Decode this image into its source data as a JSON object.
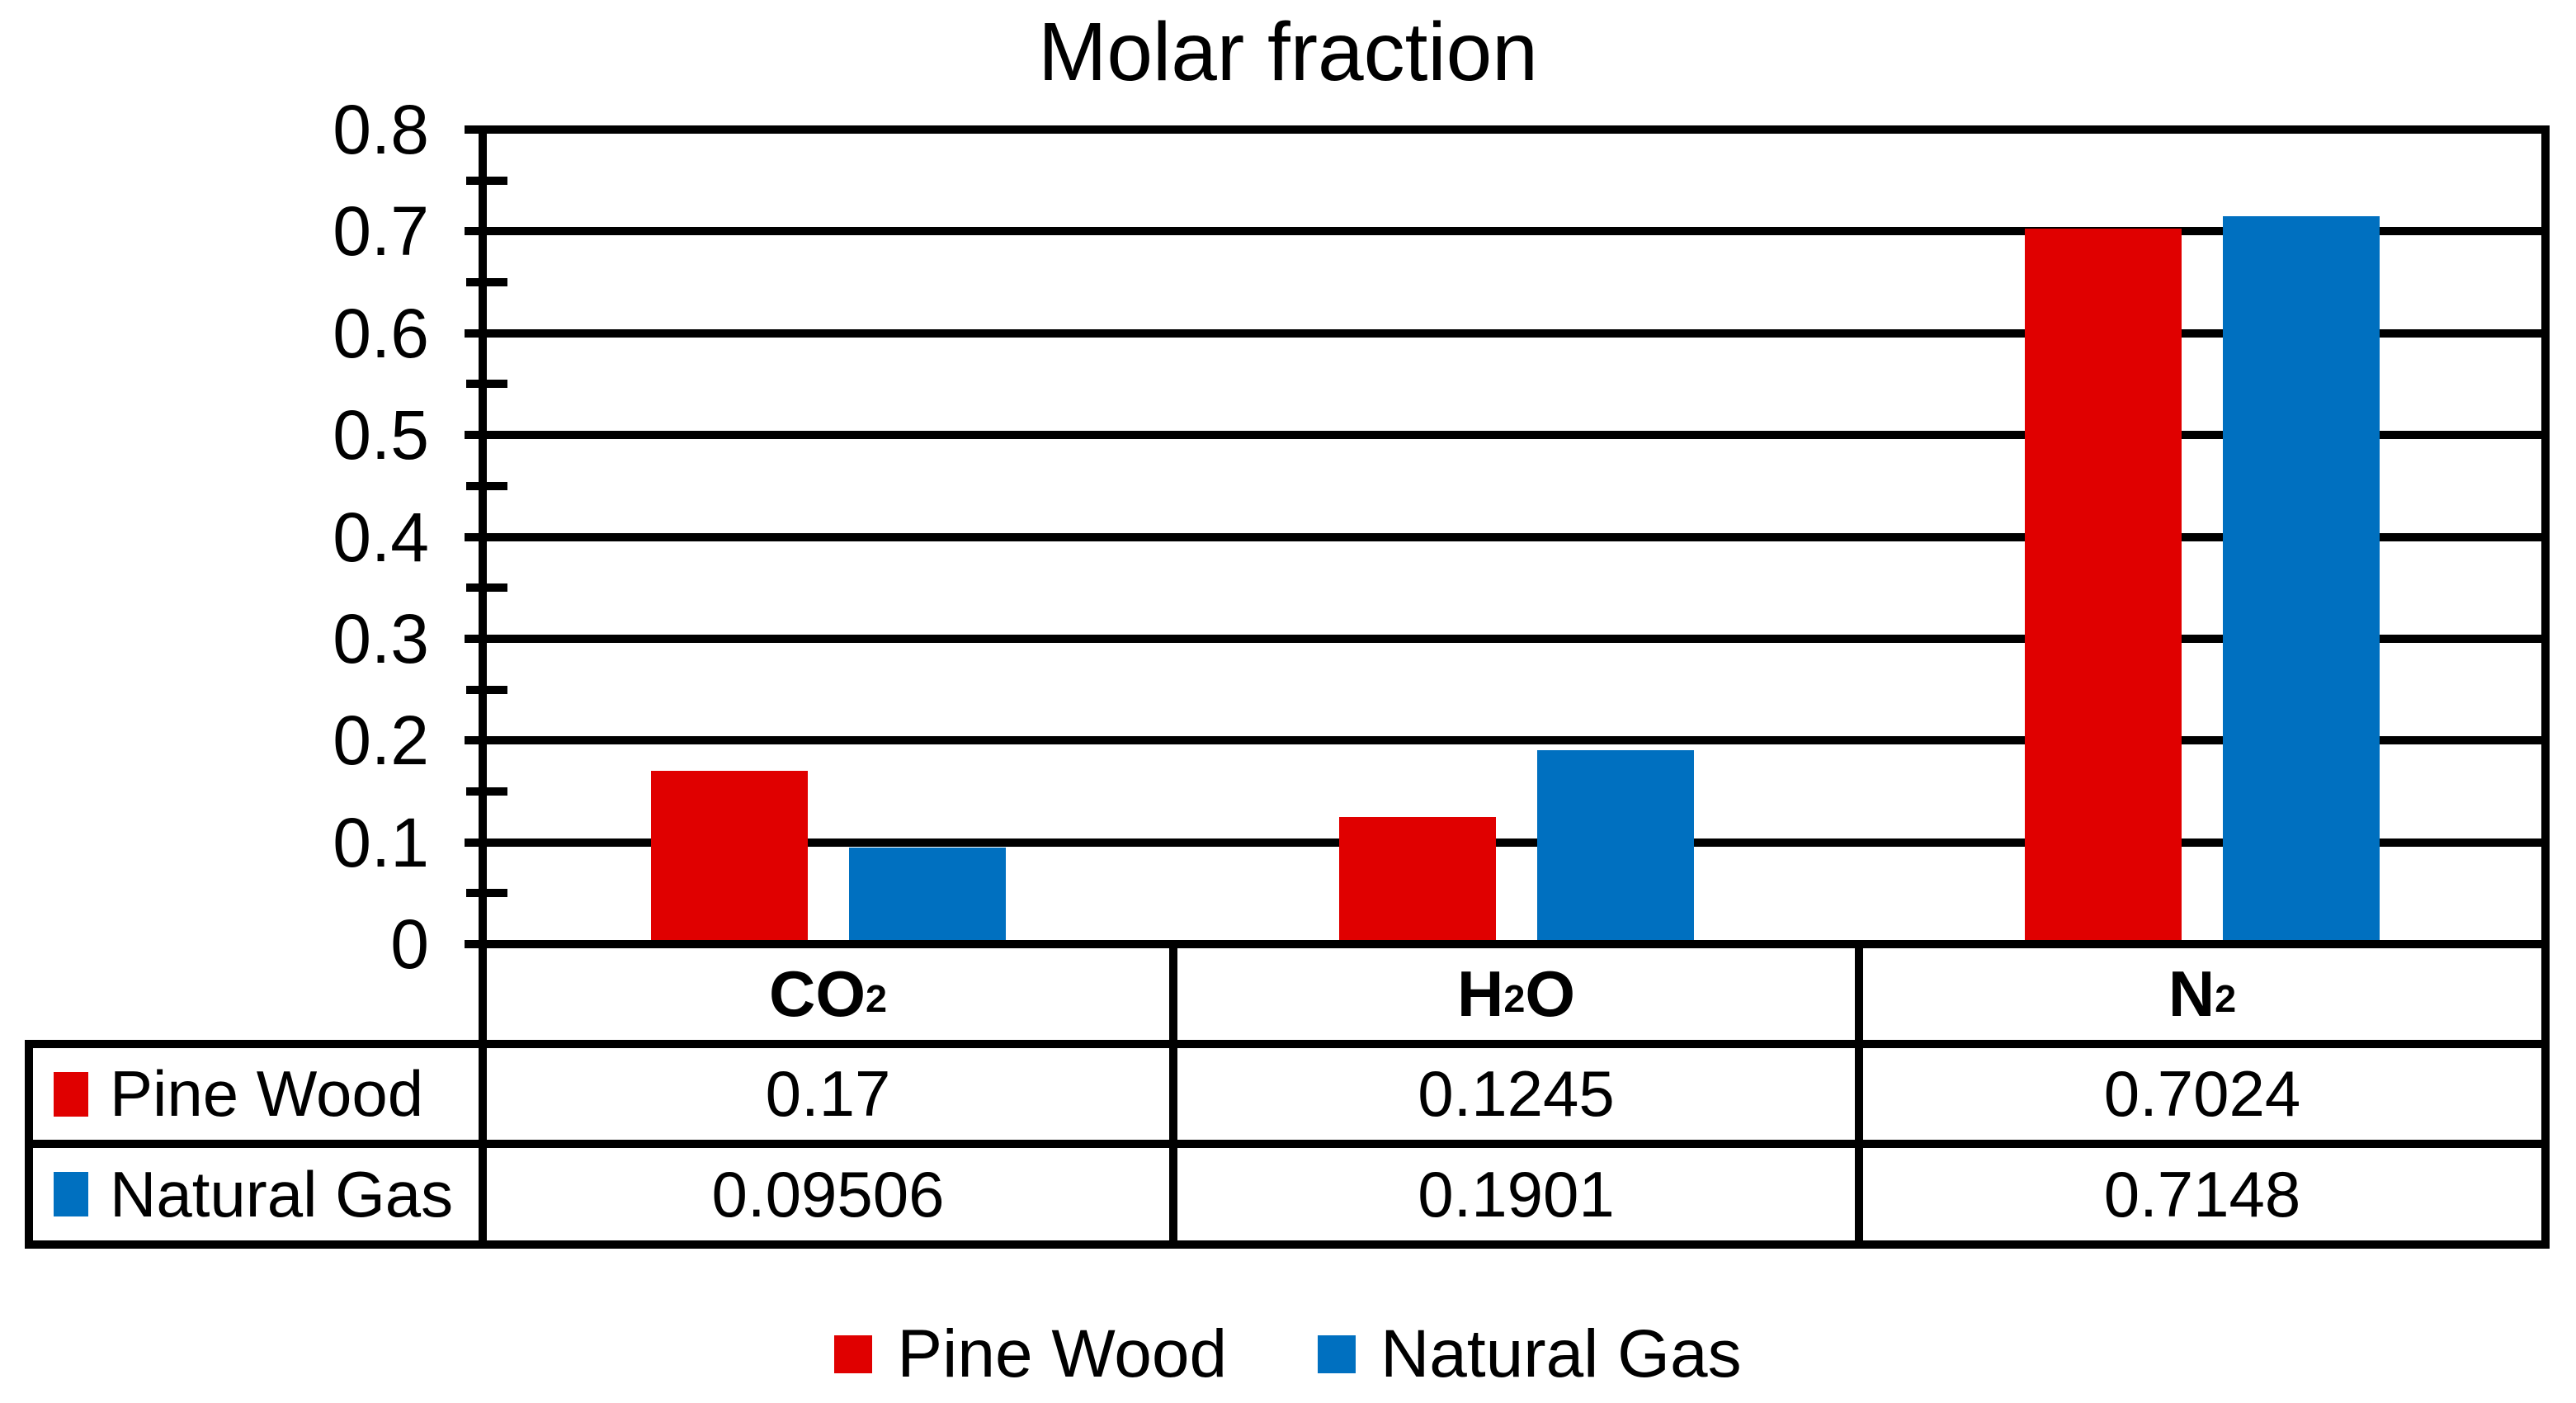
{
  "page": {
    "background": "#ffffff",
    "text_color": "#000000",
    "line_color": "#000000"
  },
  "chart_data": {
    "type": "bar",
    "title": "Molar fraction",
    "categories": [
      "CO2",
      "H2O",
      "N2"
    ],
    "categories_rich": [
      [
        {
          "t": "CO"
        },
        {
          "t": "2",
          "sub": true
        }
      ],
      [
        {
          "t": "H"
        },
        {
          "t": "2",
          "sub": true
        },
        {
          "t": "O"
        }
      ],
      [
        {
          "t": "N"
        },
        {
          "t": "2",
          "sub": true
        }
      ]
    ],
    "series": [
      {
        "name": "Pine Wood",
        "color": "#e00000",
        "values": [
          0.17,
          0.1245,
          0.7024
        ],
        "values_text": [
          "0.17",
          "0.1245",
          "0.7024"
        ]
      },
      {
        "name": "Natural Gas",
        "color": "#0070c0",
        "values": [
          0.09506,
          0.1901,
          0.7148
        ],
        "values_text": [
          "0.09506",
          "0.1901",
          "0.7148"
        ]
      }
    ],
    "xlabel": "",
    "ylabel": "",
    "ylim": [
      0,
      0.8
    ],
    "ytick_step": 0.1,
    "minor_tick_step": 0.05,
    "yticks": [
      "0.8",
      "0.7",
      "0.6",
      "0.5",
      "0.4",
      "0.3",
      "0.2",
      "0.1",
      "0"
    ],
    "grid": true,
    "legend_position": "bottom",
    "data_table_shown": true
  }
}
